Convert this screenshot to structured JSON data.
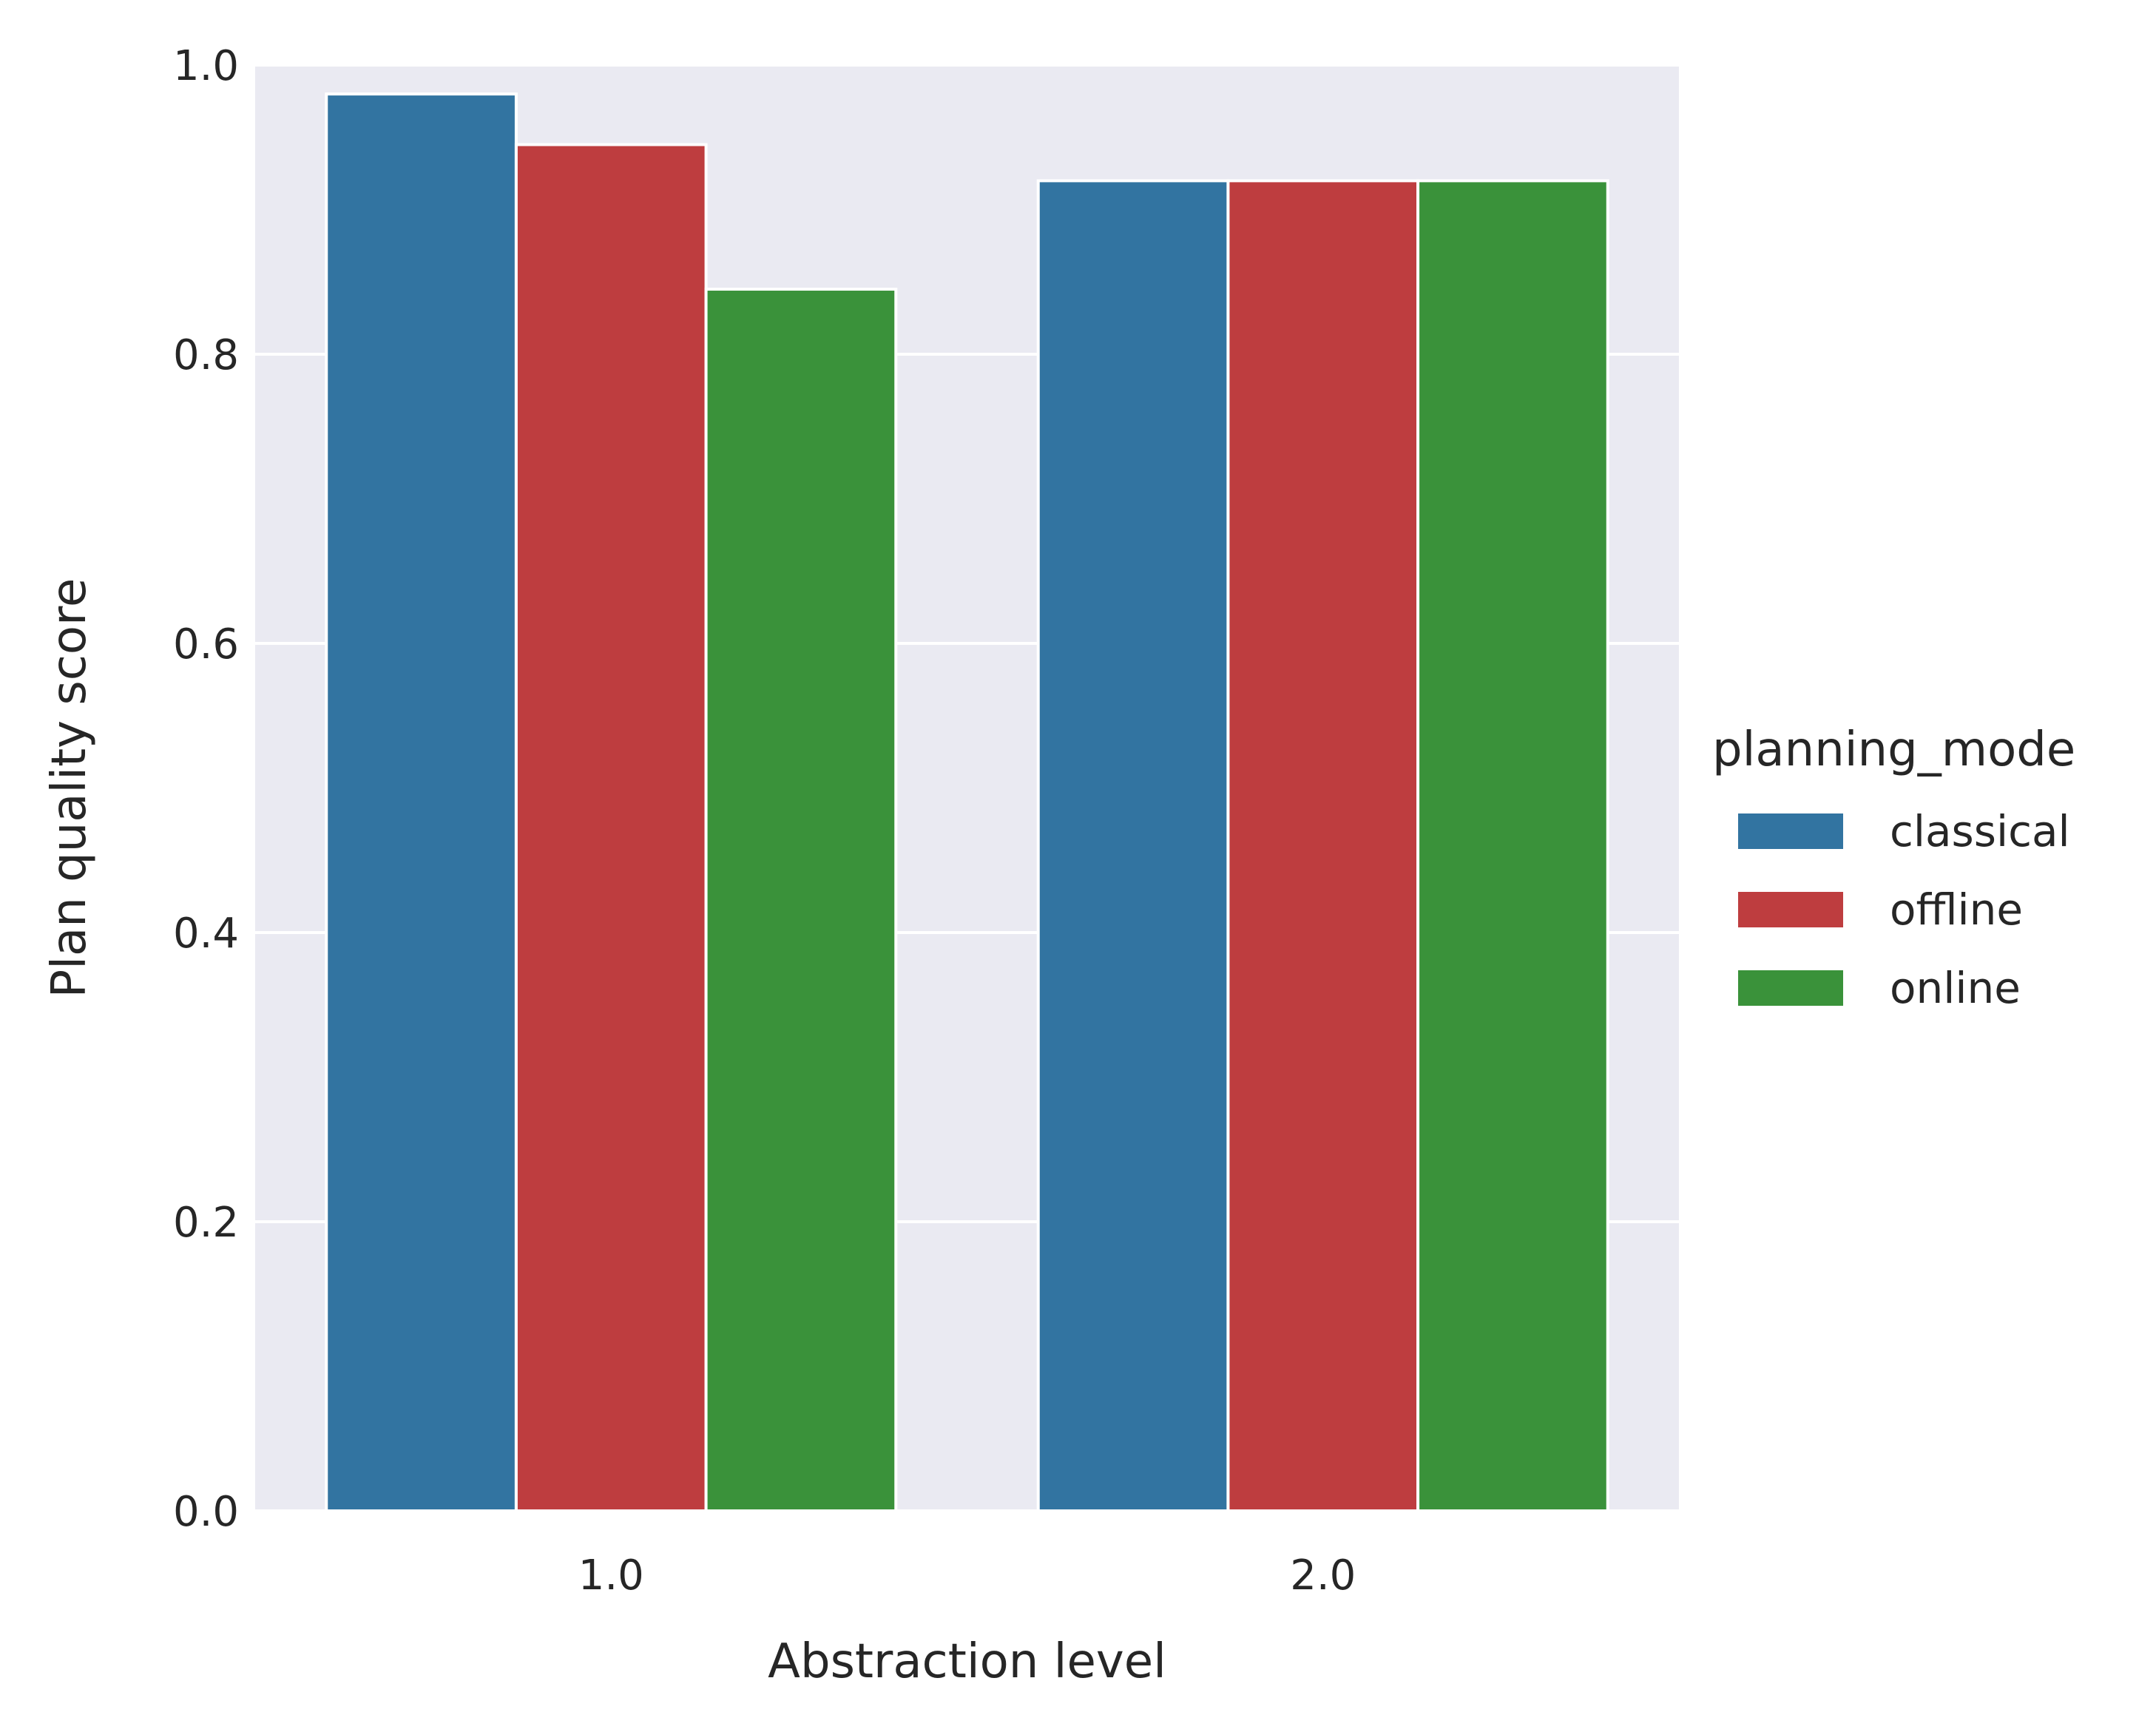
{
  "chart_data": {
    "type": "bar",
    "title": "",
    "xlabel": "Abstraction level",
    "ylabel": "Plan quality score",
    "categories": [
      "1.0",
      "2.0"
    ],
    "series": [
      {
        "name": "classical",
        "values": [
          0.98,
          0.92
        ],
        "color": "#3274a1"
      },
      {
        "name": "offline",
        "values": [
          0.945,
          0.92
        ],
        "color": "#be3d3f"
      },
      {
        "name": "online",
        "values": [
          0.845,
          0.92
        ],
        "color": "#3a923a"
      }
    ],
    "ylim": [
      0.0,
      1.0
    ],
    "yticks": [
      "0.0",
      "0.2",
      "0.4",
      "0.6",
      "0.8",
      "1.0"
    ],
    "grid": true,
    "background": "#eaeaf2",
    "legend": {
      "title": "planning_mode",
      "placement": "right"
    }
  }
}
